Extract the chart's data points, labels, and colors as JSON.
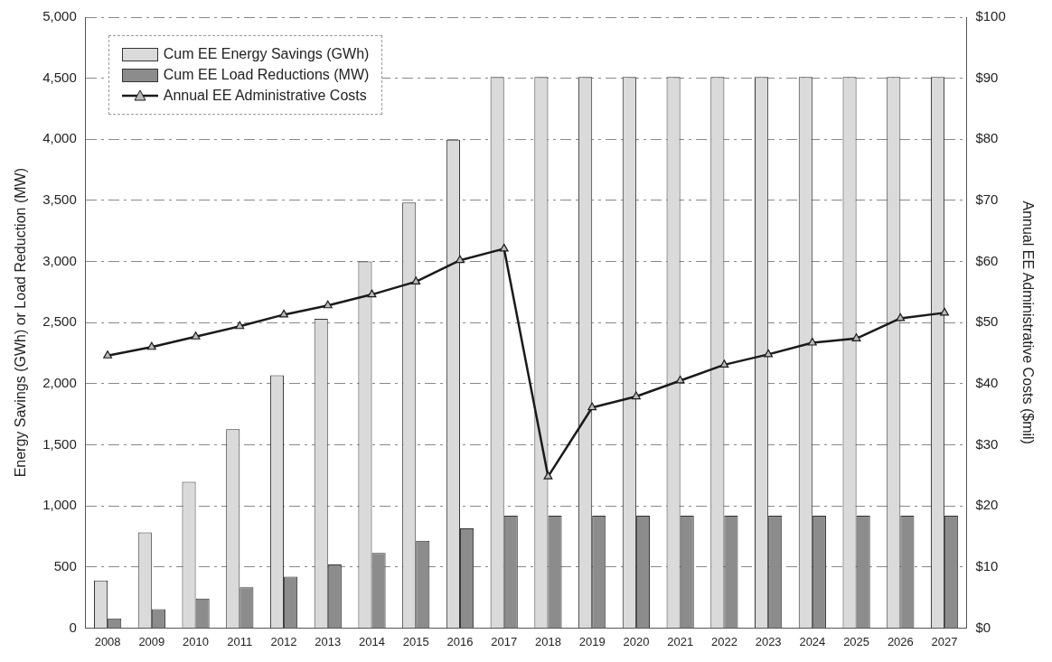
{
  "chart_data": {
    "type": "bar",
    "ylabel": "Energy Savings (GWh) or Load Reduction (MW)",
    "y2label": "Annual EE Administrative Costs ($mil)",
    "categories": [
      "2008",
      "2009",
      "2010",
      "2011",
      "2012",
      "2013",
      "2014",
      "2015",
      "2016",
      "2017",
      "2018",
      "2019",
      "2020",
      "2021",
      "2022",
      "2023",
      "2024",
      "2025",
      "2026",
      "2027"
    ],
    "series": [
      {
        "name": "Cum EE Energy Savings (GWh)",
        "color": "#dadada",
        "values": [
          390,
          783,
          1197,
          1628,
          2069,
          2531,
          3000,
          3483,
          3997,
          4510,
          4510,
          4510,
          4510,
          4510,
          4510,
          4510,
          4510,
          4510,
          4510,
          4510
        ]
      },
      {
        "name": "Cum EE Load Reductions (MW)",
        "color": "#8c8c8c",
        "values": [
          79,
          155,
          241,
          334,
          421,
          521,
          614,
          714,
          817,
          920,
          920,
          920,
          920,
          920,
          920,
          920,
          920,
          920,
          920,
          920
        ]
      },
      {
        "name": "Annual EE Administrative Costs",
        "type": "line",
        "axis": "y2",
        "color": "#1a1a1a",
        "marker": "triangle",
        "values": [
          44.6,
          46.0,
          47.7,
          49.4,
          51.3,
          52.8,
          54.6,
          56.7,
          60.2,
          62.1,
          24.8,
          36.1,
          37.9,
          40.5,
          43.1,
          44.8,
          46.7,
          47.4,
          50.7,
          51.6
        ]
      }
    ],
    "ylim": [
      0,
      5000
    ],
    "yticks": [
      {
        "value": 0,
        "label": "0"
      },
      {
        "value": 500,
        "label": "500"
      },
      {
        "value": 1000,
        "label": "1,000"
      },
      {
        "value": 1500,
        "label": "1,500"
      },
      {
        "value": 2000,
        "label": "2,000"
      },
      {
        "value": 2500,
        "label": "2,500"
      },
      {
        "value": 3000,
        "label": "3,000"
      },
      {
        "value": 3500,
        "label": "3,500"
      },
      {
        "value": 4000,
        "label": "4,000"
      },
      {
        "value": 4500,
        "label": "4,500"
      },
      {
        "value": 5000,
        "label": "5,000"
      }
    ],
    "y2lim": [
      0,
      100
    ],
    "y2ticks": [
      {
        "value": 0,
        "label": "$0"
      },
      {
        "value": 10,
        "label": "$10"
      },
      {
        "value": 20,
        "label": "$20"
      },
      {
        "value": 30,
        "label": "$30"
      },
      {
        "value": 40,
        "label": "$40"
      },
      {
        "value": 50,
        "label": "$50"
      },
      {
        "value": 60,
        "label": "$60"
      },
      {
        "value": 70,
        "label": "$70"
      },
      {
        "value": 80,
        "label": "$80"
      },
      {
        "value": 90,
        "label": "$90"
      },
      {
        "value": 100,
        "label": "$100"
      }
    ],
    "grid": "y",
    "legend": "top left"
  }
}
